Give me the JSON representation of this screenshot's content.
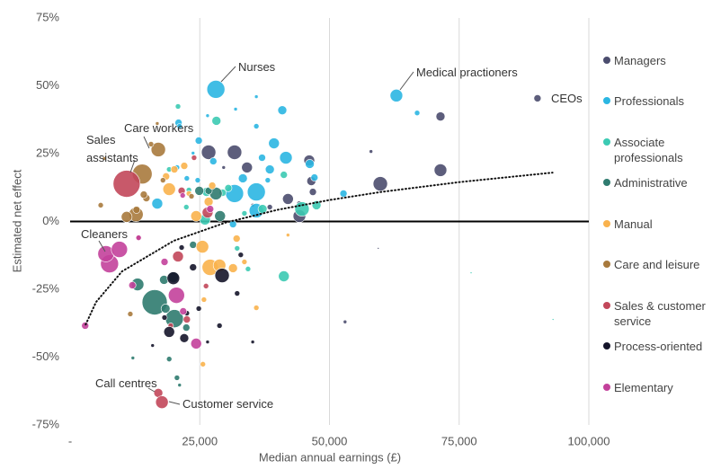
{
  "chart_data": {
    "type": "bubble",
    "y_label": "Estimated net effect",
    "x_label": "Median annual earnings (£)",
    "xlim": [
      0,
      100000
    ],
    "xticks": [
      {
        "value": 0,
        "label": "-"
      },
      {
        "value": 25000,
        "label": "25,000"
      },
      {
        "value": 50000,
        "label": "50,000"
      },
      {
        "value": 75000,
        "label": "75,000"
      },
      {
        "value": 100000,
        "label": "100,000"
      }
    ],
    "ylim": [
      -75,
      75
    ],
    "yticks": [
      {
        "value": -75,
        "label": "-75%"
      },
      {
        "value": -50,
        "label": "-50%"
      },
      {
        "value": -25,
        "label": "-25%"
      },
      {
        "value": 0,
        "label": "0%"
      },
      {
        "value": 25,
        "label": "25%"
      },
      {
        "value": 50,
        "label": "50%"
      },
      {
        "value": 75,
        "label": "75%"
      }
    ],
    "grid": true,
    "legend": "right",
    "annotations": [
      "Nurses",
      "Medical practioners",
      "CEOs",
      "Care workers",
      "Sales assistants",
      "Cleaners",
      "Call centres",
      "Customer service"
    ],
    "trend": {
      "x": [
        3000,
        5000,
        10000,
        20000,
        30000,
        40000,
        50000,
        60000,
        75000,
        93000
      ],
      "values": [
        -38,
        -29.7,
        -18.4,
        -7.1,
        -0.4,
        4.3,
        7.9,
        10.9,
        14.5,
        18
      ]
    },
    "series": [
      {
        "name": "Managers",
        "color": "#4b4d6e",
        "x": [
          90100,
          71400,
          71400,
          59800,
          58000,
          59400,
          53000,
          44200,
          44200,
          46500,
          46800,
          42000,
          46100,
          34100,
          31700,
          26700,
          38500,
          35200,
          29600
        ],
        "values": [
          45.4,
          38.7,
          18.9,
          13.9,
          25.8,
          -9.9,
          -37,
          6.6,
          2,
          14.9,
          10.9,
          8.3,
          22.5,
          19.9,
          25.5,
          25.5,
          5.3,
          6,
          19.9
        ],
        "sizes": [
          4,
          5,
          7,
          8,
          2,
          1,
          2,
          3,
          7,
          5,
          4,
          6,
          6,
          6,
          8,
          8,
          3,
          2,
          2
        ]
      },
      {
        "name": "Professionals",
        "color": "#2bb6e2",
        "x": [
          28100,
          62900,
          66900,
          40900,
          41600,
          39300,
          38500,
          37000,
          35900,
          31700,
          33300,
          46200,
          47100,
          52700,
          31400,
          35900,
          16800,
          27600,
          24800,
          26500,
          35900,
          35900,
          31900,
          24600,
          22500,
          20600,
          20900,
          38100,
          23700,
          21100
        ],
        "values": [
          48.7,
          46.4,
          40,
          41,
          23.5,
          28.8,
          19.2,
          23.5,
          10.9,
          10.3,
          15.9,
          21.2,
          16.2,
          10.3,
          -1,
          4,
          6.6,
          22.2,
          29.8,
          39,
          46,
          35.1,
          41.4,
          15.2,
          15.9,
          19.9,
          36.4,
          15.2,
          25.2,
          35.1
        ],
        "sizes": [
          10,
          7,
          3,
          5,
          7,
          6,
          5,
          4,
          10,
          10,
          5,
          5,
          4,
          4,
          4,
          8,
          6,
          4,
          4,
          2,
          2,
          3,
          2,
          3,
          3,
          3,
          4,
          3,
          2,
          3
        ]
      },
      {
        "name": "Associate professionals",
        "color": "#3ccab3",
        "x": [
          28200,
          20800,
          41200,
          44700,
          47500,
          41200,
          37100,
          33600,
          26300,
          26000,
          30500,
          32200,
          29400,
          77300,
          93100,
          22400,
          34300,
          19100,
          22900
        ],
        "values": [
          37.1,
          42.4,
          -20.2,
          4.6,
          6,
          17.2,
          4.6,
          3,
          10.9,
          0.7,
          12.3,
          -9.9,
          10.6,
          -18.9,
          -36.1,
          5.3,
          -17.5,
          19.2,
          11.6
        ],
        "sizes": [
          5,
          3,
          6,
          8,
          5,
          4,
          5,
          3,
          5,
          6,
          4,
          3,
          4,
          1,
          1,
          3,
          3,
          3,
          3
        ]
      },
      {
        "name": "Administrative",
        "color": "#2f7b6f",
        "x": [
          16300,
          20100,
          19900,
          18100,
          13000,
          19100,
          20600,
          21100,
          23700,
          28900,
          24900,
          28100,
          26700,
          18400,
          12100,
          22400
        ],
        "values": [
          -29.8,
          -35.8,
          -20.5,
          -21.5,
          -23.2,
          -50.7,
          -57.6,
          -60.3,
          -8.6,
          2,
          11.3,
          10.3,
          11.3,
          -32.1,
          -50.3,
          -39.1
        ],
        "sizes": [
          14,
          10,
          6,
          5,
          7,
          3,
          3,
          2,
          4,
          6,
          5,
          7,
          4,
          5,
          2,
          4
        ]
      },
      {
        "name": "Manual",
        "color": "#f9b24d",
        "x": [
          19100,
          18500,
          25500,
          27000,
          28800,
          31400,
          26700,
          24300,
          32100,
          33600,
          35900,
          25800,
          25600,
          42000,
          22000,
          22900,
          20100,
          27400
        ],
        "values": [
          11.9,
          16.6,
          -9.3,
          -16.9,
          -16.2,
          -17.2,
          7.3,
          2,
          -6.3,
          -14.9,
          -31.8,
          -28.8,
          -52.6,
          -5,
          20.5,
          10.3,
          19.2,
          13.2
        ],
        "sizes": [
          7,
          4,
          7,
          9,
          7,
          5,
          5,
          6,
          4,
          3,
          3,
          3,
          3,
          2,
          4,
          3,
          4,
          4
        ]
      },
      {
        "name": "Care and leisure",
        "color": "#a87a3d",
        "x": [
          17000,
          13900,
          12700,
          10900,
          14700,
          17900,
          15600,
          16800,
          14200,
          6600,
          5900,
          12800,
          11600,
          23400
        ],
        "values": [
          26.5,
          17.5,
          2.6,
          1.7,
          8.6,
          15.2,
          28.5,
          36.1,
          9.9,
          23.2,
          6,
          4.3,
          -34.1,
          9.3
        ],
        "sizes": [
          8,
          11,
          8,
          6,
          4,
          3,
          3,
          2,
          4,
          2,
          3,
          4,
          3,
          3
        ]
      },
      {
        "name": "Sales & customer service",
        "color": "#c2475a",
        "x": [
          10900,
          17000,
          17700,
          20800,
          26500,
          21500,
          13200,
          22500,
          26200,
          23900,
          19400
        ],
        "values": [
          13.9,
          -63.2,
          -66.6,
          -12.9,
          3.3,
          11.3,
          -6,
          -36.1,
          -23.8,
          23.5,
          -38.4
        ],
        "sizes": [
          15,
          5,
          7,
          6,
          6,
          4,
          3,
          4,
          3,
          3,
          3
        ]
      },
      {
        "name": "Process-oriented",
        "color": "#15152a",
        "x": [
          29300,
          19900,
          19100,
          22000,
          23700,
          21500,
          18200,
          28800,
          32200,
          26500,
          35200,
          15900,
          22500,
          24800,
          32900
        ],
        "values": [
          -19.9,
          -20.9,
          -40.7,
          -43,
          -16.9,
          -9.6,
          -35.4,
          -38.4,
          -26.5,
          -44.4,
          -44.4,
          -45.7,
          -33.8,
          -32.1,
          -12.3
        ],
        "sizes": [
          8,
          7,
          6,
          5,
          4,
          3,
          3,
          3,
          3,
          2,
          2,
          2,
          3,
          3,
          3
        ]
      },
      {
        "name": "Elementary",
        "color": "#c3419b",
        "x": [
          7600,
          6900,
          9500,
          2900,
          20500,
          24300,
          13200,
          12000,
          18200,
          27000,
          21700,
          21800
        ],
        "values": [
          -15.6,
          -11.9,
          -10.3,
          -38.4,
          -27.2,
          -45,
          -6,
          -23.5,
          -14.9,
          4.6,
          9.6,
          -33.1
        ],
        "sizes": [
          10,
          9,
          9,
          4,
          9,
          6,
          3,
          4,
          4,
          4,
          3,
          4
        ]
      }
    ]
  }
}
